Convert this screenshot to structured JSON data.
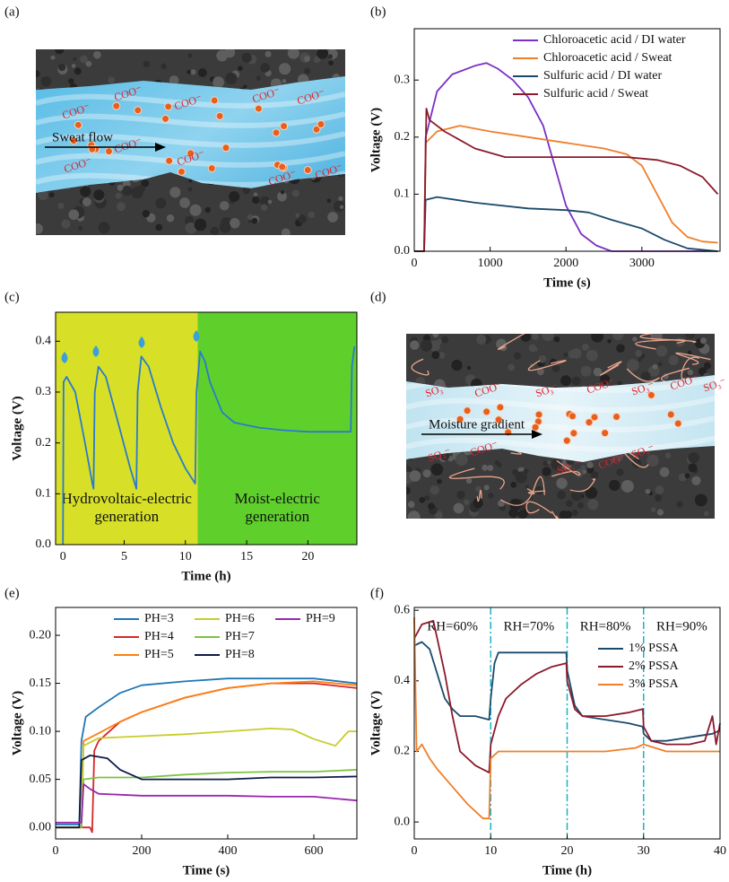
{
  "chart_data": [
    {
      "panel_label": "(b)",
      "type": "line",
      "xlabel": "Time (s)",
      "ylabel": "Voltage (V)",
      "xlim": [
        0,
        4030
      ],
      "ylim": [
        0,
        0.39
      ],
      "xticks": [
        0,
        1000,
        2000,
        3000
      ],
      "yticks": [
        {
          "value": 0,
          "label": "0.0"
        },
        {
          "value": 0.1,
          "label": "0.1"
        },
        {
          "value": 0.2,
          "label": "0.2"
        },
        {
          "value": 0.3,
          "label": "0.3"
        }
      ],
      "legend": "upper right",
      "series": [
        {
          "name": "Chloroacetic acid / DI water",
          "color": "#7b2fc4",
          "x": [
            0,
            130,
            150,
            300,
            500,
            800,
            950,
            1100,
            1300,
            1500,
            1700,
            1850,
            2000,
            2200,
            2400,
            2600,
            4000
          ],
          "values": [
            0,
            0,
            0.2,
            0.28,
            0.31,
            0.325,
            0.33,
            0.32,
            0.3,
            0.27,
            0.22,
            0.15,
            0.08,
            0.03,
            0.01,
            0,
            0
          ]
        },
        {
          "name": "Chloroacetic acid / Sweat",
          "color": "#f07f2a",
          "x": [
            0,
            130,
            150,
            300,
            600,
            1000,
            1500,
            2000,
            2500,
            2800,
            3000,
            3200,
            3400,
            3600,
            3800,
            4000
          ],
          "values": [
            0,
            0,
            0.19,
            0.21,
            0.22,
            0.21,
            0.2,
            0.19,
            0.18,
            0.17,
            0.15,
            0.1,
            0.05,
            0.025,
            0.017,
            0.015
          ]
        },
        {
          "name": "Sulfuric acid / DI water",
          "color": "#1a4a6b",
          "x": [
            0,
            130,
            150,
            300,
            800,
            1500,
            2000,
            2300,
            2600,
            3000,
            3300,
            3600,
            4000
          ],
          "values": [
            0,
            0,
            0.09,
            0.095,
            0.085,
            0.075,
            0.072,
            0.068,
            0.055,
            0.04,
            0.02,
            0.005,
            0
          ]
        },
        {
          "name": "Sulfuric acid / Sweat",
          "color": "#8b1a2b",
          "x": [
            0,
            130,
            160,
            200,
            400,
            800,
            1200,
            2000,
            2800,
            3200,
            3500,
            3800,
            4000
          ],
          "values": [
            0,
            0,
            0.25,
            0.23,
            0.21,
            0.18,
            0.165,
            0.165,
            0.165,
            0.16,
            0.15,
            0.13,
            0.1
          ]
        }
      ]
    },
    {
      "panel_label": "(c)",
      "type": "line",
      "xlabel": "Time (h)",
      "ylabel": "Voltage (V)",
      "xlim": [
        -0.6,
        24
      ],
      "ylim": [
        0,
        0.457
      ],
      "xticks": [
        0,
        5,
        10,
        15,
        20
      ],
      "yticks": [
        {
          "value": 0,
          "label": "0.0"
        },
        {
          "value": 0.1,
          "label": "0.1"
        },
        {
          "value": 0.2,
          "label": "0.2"
        },
        {
          "value": 0.3,
          "label": "0.3"
        },
        {
          "value": 0.4,
          "label": "0.4"
        }
      ],
      "regions": [
        {
          "label": [
            "Hydrovoltaic-electric",
            "generation"
          ],
          "color": "#d7e027",
          "end": 11
        },
        {
          "label": [
            "Moist-electric",
            "generation"
          ],
          "color": "#5fd02b"
        }
      ],
      "series": [
        {
          "color": "#2a7ad0",
          "x": [
            0,
            0.05,
            0.3,
            1,
            1.8,
            2.4,
            2.5,
            2.6,
            2.9,
            3.5,
            4.5,
            5.5,
            6.0,
            6.1,
            6.4,
            7,
            8,
            9,
            10,
            10.8,
            10.9,
            11.2,
            11.6,
            12,
            13,
            14,
            16,
            18,
            20,
            23.5,
            23.6,
            23.8
          ],
          "values": [
            0,
            0.32,
            0.33,
            0.3,
            0.2,
            0.12,
            0.11,
            0.3,
            0.35,
            0.33,
            0.24,
            0.15,
            0.11,
            0.3,
            0.37,
            0.35,
            0.27,
            0.2,
            0.15,
            0.12,
            0.3,
            0.38,
            0.36,
            0.32,
            0.26,
            0.24,
            0.23,
            0.225,
            0.222,
            0.222,
            0.35,
            0.39
          ]
        }
      ]
    },
    {
      "panel_label": "(e)",
      "type": "line",
      "xlabel": "Time (s)",
      "ylabel": "Voltage (V)",
      "xlim": [
        0,
        700
      ],
      "ylim": [
        -0.012,
        0.229
      ],
      "xticks": [
        0,
        200,
        400,
        600
      ],
      "yticks": [
        {
          "value": 0,
          "label": "0.00"
        },
        {
          "value": 0.05,
          "label": "0.05"
        },
        {
          "value": 0.1,
          "label": "0.10"
        },
        {
          "value": 0.15,
          "label": "0.15"
        },
        {
          "value": 0.2,
          "label": "0.20"
        }
      ],
      "legend": "upper center",
      "legend_columns": 3,
      "series": [
        {
          "name": "PH=3",
          "color": "#1f77b4",
          "x": [
            0,
            55,
            60,
            70,
            100,
            150,
            200,
            300,
            400,
            500,
            600,
            700
          ],
          "values": [
            0.003,
            0.003,
            0.09,
            0.115,
            0.125,
            0.14,
            0.148,
            0.152,
            0.155,
            0.155,
            0.155,
            0.15
          ]
        },
        {
          "name": "PH=4",
          "color": "#d62728",
          "x": [
            0,
            80,
            85,
            90,
            100,
            150,
            200,
            300,
            400,
            500,
            600,
            700
          ],
          "values": [
            0,
            0,
            -0.005,
            0.08,
            0.09,
            0.11,
            0.12,
            0.135,
            0.145,
            0.15,
            0.15,
            0.145
          ]
        },
        {
          "name": "PH=5",
          "color": "#ff7f0e",
          "x": [
            0,
            60,
            65,
            100,
            150,
            200,
            300,
            400,
            500,
            600,
            700
          ],
          "values": [
            0,
            0,
            0.09,
            0.098,
            0.11,
            0.12,
            0.135,
            0.145,
            0.15,
            0.152,
            0.148
          ]
        },
        {
          "name": "PH=6",
          "color": "#c8cd2a",
          "x": [
            0,
            60,
            65,
            100,
            200,
            300,
            400,
            500,
            550,
            600,
            650,
            680,
            700
          ],
          "values": [
            0,
            0,
            0.085,
            0.093,
            0.095,
            0.097,
            0.1,
            0.103,
            0.102,
            0.092,
            0.085,
            0.1,
            0.1
          ]
        },
        {
          "name": "PH=7",
          "color": "#7dc243",
          "x": [
            0,
            60,
            65,
            100,
            200,
            300,
            400,
            500,
            600,
            700
          ],
          "values": [
            0,
            0,
            0.05,
            0.052,
            0.052,
            0.055,
            0.057,
            0.058,
            0.058,
            0.06
          ]
        },
        {
          "name": "PH=8",
          "color": "#0d1b4a",
          "x": [
            0,
            55,
            60,
            80,
            120,
            150,
            200,
            300,
            400,
            500,
            600,
            700
          ],
          "values": [
            0,
            0,
            0.07,
            0.075,
            0.072,
            0.06,
            0.05,
            0.05,
            0.05,
            0.052,
            0.052,
            0.053
          ]
        },
        {
          "name": "PH=9",
          "color": "#9b27b0",
          "x": [
            0,
            60,
            65,
            80,
            100,
            200,
            300,
            400,
            500,
            600,
            700
          ],
          "values": [
            0.005,
            0.005,
            0.045,
            0.04,
            0.035,
            0.033,
            0.033,
            0.033,
            0.032,
            0.032,
            0.028
          ]
        }
      ]
    },
    {
      "panel_label": "(f)",
      "type": "line",
      "xlabel": "Time (h)",
      "ylabel": "Voltage (V)",
      "xlim": [
        0,
        40
      ],
      "ylim": [
        -0.048,
        0.608
      ],
      "xticks": [
        0,
        10,
        20,
        30,
        40
      ],
      "yticks": [
        {
          "value": 0,
          "label": "0.0"
        },
        {
          "value": 0.2,
          "label": "0.2"
        },
        {
          "value": 0.4,
          "label": "0.4"
        },
        {
          "value": 0.6,
          "label": "0.6"
        }
      ],
      "dividers": [
        10,
        20,
        30
      ],
      "divider_color": "#17b3c8",
      "region_labels": [
        "RH=60%",
        "RH=70%",
        "RH=80%",
        "RH=90%"
      ],
      "legend": "center right",
      "series": [
        {
          "name": "1% PSSA",
          "color": "#1a4a6b",
          "x": [
            0,
            1,
            2,
            3,
            4,
            5,
            6,
            8,
            9.8,
            10,
            10.5,
            11,
            13,
            15,
            18,
            19.9,
            20,
            21,
            22,
            25,
            28,
            29.9,
            30,
            31,
            33,
            36,
            39,
            40
          ],
          "values": [
            0.5,
            0.51,
            0.49,
            0.42,
            0.35,
            0.32,
            0.3,
            0.3,
            0.29,
            0.35,
            0.45,
            0.48,
            0.48,
            0.48,
            0.48,
            0.48,
            0.43,
            0.33,
            0.3,
            0.29,
            0.28,
            0.27,
            0.25,
            0.23,
            0.23,
            0.24,
            0.25,
            0.26
          ]
        },
        {
          "name": "2% PSSA",
          "color": "#8b1a2b",
          "x": [
            0,
            1,
            2.5,
            3,
            4,
            5,
            6,
            8,
            9.8,
            10,
            11,
            12,
            14,
            16,
            18,
            19.9,
            20,
            21,
            22,
            25,
            28,
            29.9,
            30,
            31,
            33,
            36,
            38,
            39,
            39.5,
            40
          ],
          "values": [
            0.52,
            0.56,
            0.57,
            0.52,
            0.42,
            0.3,
            0.2,
            0.16,
            0.14,
            0.22,
            0.3,
            0.35,
            0.39,
            0.42,
            0.44,
            0.45,
            0.4,
            0.32,
            0.3,
            0.3,
            0.31,
            0.32,
            0.27,
            0.23,
            0.22,
            0.22,
            0.23,
            0.3,
            0.22,
            0.28
          ]
        },
        {
          "name": "3% PSSA",
          "color": "#f07f2a",
          "x": [
            0,
            0.3,
            1,
            2,
            3,
            5,
            7,
            8,
            9,
            9.8,
            10,
            11,
            15,
            19,
            20,
            25,
            29,
            30,
            33,
            36,
            40
          ],
          "values": [
            0.58,
            0.2,
            0.22,
            0.18,
            0.15,
            0.1,
            0.05,
            0.03,
            0.01,
            0.01,
            0.18,
            0.2,
            0.2,
            0.2,
            0.2,
            0.2,
            0.21,
            0.22,
            0.2,
            0.2,
            0.2
          ]
        }
      ]
    }
  ],
  "illustrations": [
    {
      "panel_label": "(a)",
      "flow_label": "Sweat flow",
      "ion_labels": [
        "COO⁻",
        "COO⁻",
        "COO⁻",
        "COO⁻",
        "COO⁻",
        "COO⁻",
        "COO⁻",
        "COO⁻",
        "COO⁻",
        "COO⁻"
      ]
    },
    {
      "panel_label": "(d)",
      "flow_label": "Moisture gradient",
      "ion_labels": [
        "SO₃⁻",
        "COO⁻",
        "SO₃⁻",
        "COO⁻",
        "SO₃⁻",
        "COO⁻",
        "SO₃⁻",
        "SO₃⁻",
        "COO⁻",
        "SO₃⁻",
        "COO⁻",
        "SO₃⁻"
      ]
    }
  ]
}
